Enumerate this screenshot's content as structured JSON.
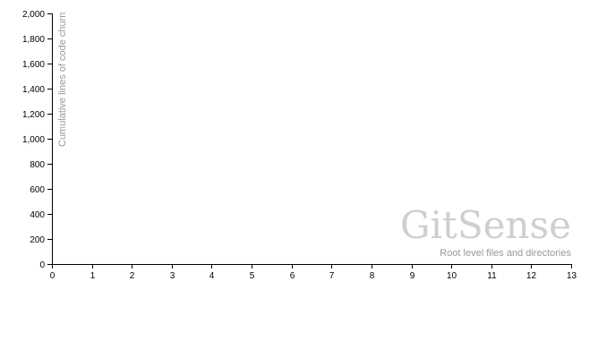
{
  "chart_data": {
    "type": "line",
    "title": "",
    "xlabel": "Root level files and directories",
    "ylabel": "Cumulative lines of code churn",
    "xlim": [
      0,
      13
    ],
    "ylim": [
      0,
      2000
    ],
    "x_ticks": [
      "0",
      "1",
      "2",
      "3",
      "4",
      "5",
      "6",
      "7",
      "8",
      "9",
      "10",
      "11",
      "12",
      "13"
    ],
    "y_ticks": [
      "0",
      "200",
      "400",
      "600",
      "800",
      "1,000",
      "1,200",
      "1,400",
      "1,600",
      "1,800",
      "2,000"
    ],
    "series": [],
    "grid": false
  },
  "watermark": {
    "text": "GitSense"
  },
  "colors": {
    "axis": "#000000",
    "muted_text": "#999999",
    "watermark": "#cfcfcf"
  }
}
